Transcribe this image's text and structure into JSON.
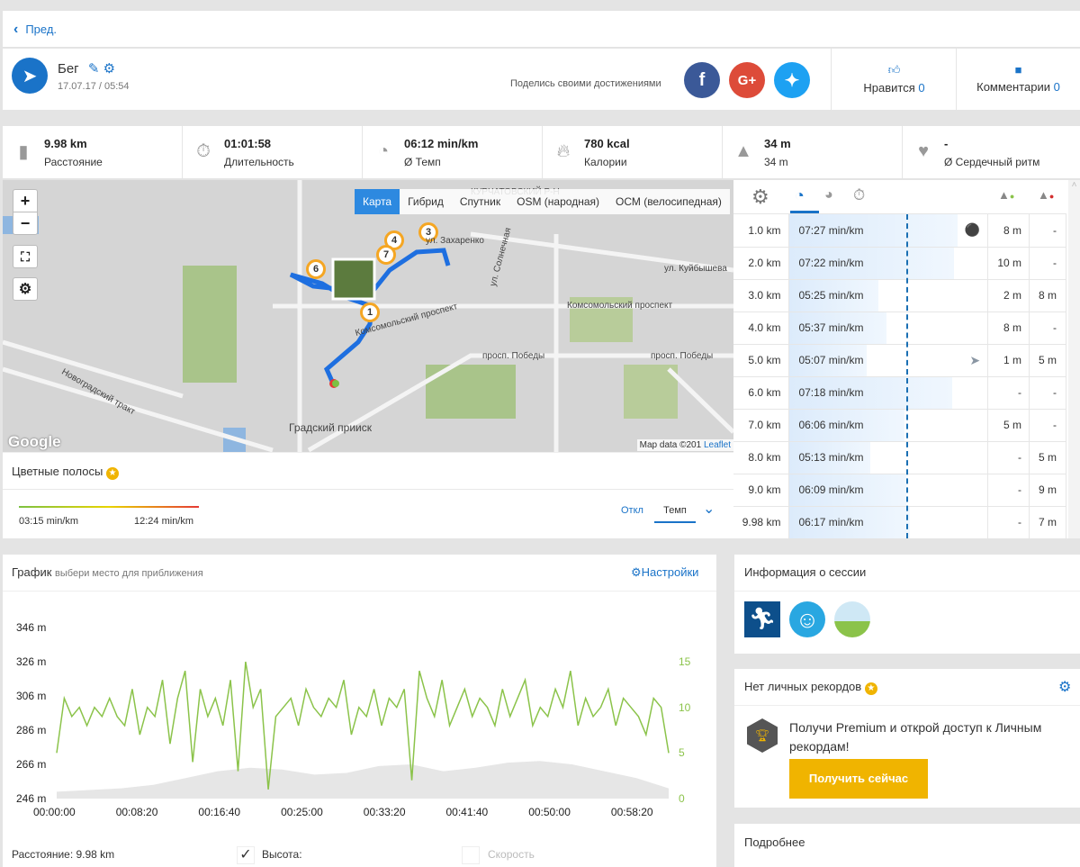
{
  "nav": {
    "back": "Пред."
  },
  "activity": {
    "title": "Бег",
    "datetime": "17.07.17 / 05:54",
    "share_text": "Поделись своими достижениями",
    "like_label": "Нравится",
    "like_count": "0",
    "comments_label": "Комментарии",
    "comments_count": "0"
  },
  "stats": [
    {
      "value": "9.98 km",
      "label": "Расстояние",
      "icon": "road-icon"
    },
    {
      "value": "01:01:58",
      "label": "Длительность",
      "icon": "stopwatch-icon"
    },
    {
      "value": "06:12 min/km",
      "label": "Ø Темп",
      "icon": "pace-icon"
    },
    {
      "value": "780 kcal",
      "label": "Калории",
      "icon": "flame-icon"
    },
    {
      "value": "34 m",
      "label": "34 m",
      "icon": "elevation-icon"
    },
    {
      "value": "-",
      "label": "Ø Сердечный ритм",
      "icon": "heart-icon"
    }
  ],
  "map": {
    "tabs": [
      "Карта",
      "Гибрид",
      "Спутник",
      "OSM (народная)",
      "ОСМ (велосипедная)"
    ],
    "active_tab": "Карта",
    "zoom_in": "+",
    "zoom_out": "−",
    "attribution": "Map data ©201",
    "leaflet": "Leaflet",
    "google": "Google",
    "labels": [
      "ул. Захаренко",
      "ул. Куйбышева",
      "Комсомольский проспект",
      "просп. Победы",
      "просп. Победы",
      "Градский прииск",
      "Новоградский тракт",
      "ул. Солнечная",
      "КУРЧАТОВСКИЙ Р-Н",
      "Комсомольский проспект"
    ],
    "markers": [
      "1",
      "3",
      "4",
      "6",
      "7"
    ]
  },
  "color_bars": {
    "title": "Цветные полосы",
    "min": "03:15 min/km",
    "max": "12:24 min/km",
    "off": "Откл",
    "tempo": "Темп"
  },
  "splits": {
    "rows": [
      {
        "km": "1.0 km",
        "pace": "07:27 min/km",
        "up": "8 m",
        "down": "-",
        "bar": 0.85,
        "badge": "turtle"
      },
      {
        "km": "2.0 km",
        "pace": "07:22 min/km",
        "up": "10 m",
        "down": "-",
        "bar": 0.83
      },
      {
        "km": "3.0 km",
        "pace": "05:25 min/km",
        "up": "2 m",
        "down": "8 m",
        "bar": 0.45
      },
      {
        "km": "4.0 km",
        "pace": "05:37 min/km",
        "up": "8 m",
        "down": "-",
        "bar": 0.49
      },
      {
        "km": "5.0 km",
        "pace": "05:07 min/km",
        "up": "1 m",
        "down": "5 m",
        "bar": 0.39,
        "badge": "rabbit"
      },
      {
        "km": "6.0 km",
        "pace": "07:18 min/km",
        "up": "-",
        "down": "-",
        "bar": 0.82
      },
      {
        "km": "7.0 km",
        "pace": "06:06 min/km",
        "up": "5 m",
        "down": "-",
        "bar": 0.58
      },
      {
        "km": "8.0 km",
        "pace": "05:13 min/km",
        "up": "-",
        "down": "5 m",
        "bar": 0.41
      },
      {
        "km": "9.0 km",
        "pace": "06:09 min/km",
        "up": "-",
        "down": "9 m",
        "bar": 0.59
      },
      {
        "km": "9.98 km",
        "pace": "06:17 min/km",
        "up": "-",
        "down": "7 m",
        "bar": 0.61
      }
    ]
  },
  "graph": {
    "title": "График",
    "hint": "выбери место для приближения",
    "settings": "Настройки",
    "distance": "Расстояние: 9.98 km",
    "altitude": "Высота:",
    "speed": "Скорость"
  },
  "session": {
    "title": "Информация о сессии"
  },
  "records": {
    "title": "Нет личных рекордов",
    "text": "Получи Premium и открой доступ к Личным рекордам!",
    "button": "Получить сейчас"
  },
  "details": {
    "title": "Подробнее"
  },
  "chart_data": {
    "type": "area+line",
    "x_ticks": [
      "00:00:00",
      "00:08:20",
      "00:16:40",
      "00:25:00",
      "00:33:20",
      "00:41:40",
      "00:50:00",
      "00:58:20"
    ],
    "y_left_ticks": [
      "246 m",
      "266 m",
      "286 m",
      "306 m",
      "326 m",
      "346 m"
    ],
    "y_left_range": [
      246,
      346
    ],
    "y_right_ticks": [
      "0",
      "5",
      "10",
      "15"
    ],
    "y_right_range": [
      0,
      15
    ],
    "x_range_seconds": [
      0,
      3718
    ],
    "series": [
      {
        "name": "Высота",
        "type": "area",
        "color": "#e6e6e6",
        "values": [
          250,
          251,
          252,
          254,
          258,
          262,
          264,
          263,
          260,
          261,
          265,
          266,
          262,
          264,
          267,
          268,
          266,
          262,
          258,
          252
        ]
      },
      {
        "name": "Скорость",
        "type": "line",
        "color": "#8bc34a",
        "values": [
          5,
          11,
          9,
          10,
          8,
          10,
          9,
          11,
          9,
          8,
          12,
          7,
          10,
          9,
          13,
          6,
          11,
          14,
          4,
          12,
          9,
          11,
          8,
          13,
          3,
          15,
          10,
          12,
          1,
          9,
          10,
          11,
          8,
          12,
          10,
          9,
          11,
          10,
          13,
          7,
          10,
          9,
          12,
          8,
          11,
          10,
          12,
          2,
          14,
          11,
          9,
          13,
          8,
          10,
          12,
          9,
          11,
          10,
          8,
          12,
          9,
          11,
          13,
          8,
          10,
          9,
          12,
          10,
          14,
          8,
          11,
          9,
          10,
          12,
          8,
          11,
          10,
          9,
          7,
          11,
          10,
          5
        ]
      }
    ]
  }
}
